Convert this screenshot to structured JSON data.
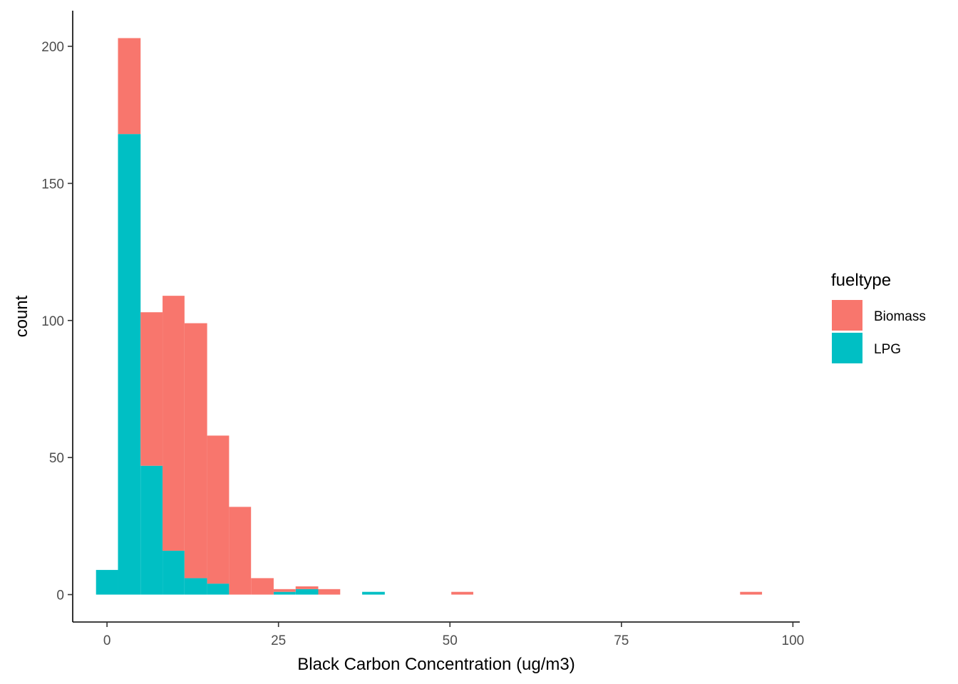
{
  "chart_data": {
    "type": "bar",
    "stacked": true,
    "chart_kind": "histogram",
    "xlabel": "Black Carbon Concentration (ug/m3)",
    "ylabel": "count",
    "xlim": [
      -5,
      101
    ],
    "ylim": [
      -10,
      213
    ],
    "x_ticks": [
      {
        "value": 0,
        "label": "0"
      },
      {
        "value": 25,
        "label": "25"
      },
      {
        "value": 50,
        "label": "50"
      },
      {
        "value": 75,
        "label": "75"
      },
      {
        "value": 100,
        "label": "100"
      }
    ],
    "y_ticks": [
      {
        "value": 0,
        "label": "0"
      },
      {
        "value": 50,
        "label": "50"
      },
      {
        "value": 100,
        "label": "100"
      },
      {
        "value": 150,
        "label": "150"
      },
      {
        "value": 200,
        "label": "200"
      }
    ],
    "bins": [
      [
        -1.6,
        1.6
      ],
      [
        1.6,
        4.9
      ],
      [
        4.9,
        8.1
      ],
      [
        8.1,
        11.3
      ],
      [
        11.3,
        14.6
      ],
      [
        14.6,
        17.8
      ],
      [
        17.8,
        21.0
      ],
      [
        21.0,
        24.3
      ],
      [
        24.3,
        27.5
      ],
      [
        27.5,
        30.8
      ],
      [
        30.8,
        34.0
      ],
      [
        37.2,
        40.5
      ],
      [
        50.2,
        53.4
      ],
      [
        92.3,
        95.5
      ]
    ],
    "series": [
      {
        "name": "LPG",
        "color": "#00BFC4",
        "values": [
          9,
          168,
          47,
          16,
          6,
          4,
          0,
          0,
          1,
          2,
          0,
          1,
          0,
          0
        ]
      },
      {
        "name": "Biomass",
        "color": "#F8766D",
        "values": [
          0,
          35,
          56,
          93,
          93,
          54,
          32,
          6,
          1,
          1,
          2,
          0,
          1,
          1
        ]
      }
    ],
    "legend": {
      "title": "fueltype",
      "position": "right",
      "entries": [
        {
          "label": "Biomass",
          "color": "#F8766D"
        },
        {
          "label": "LPG",
          "color": "#00BFC4"
        }
      ]
    },
    "grid": false
  }
}
